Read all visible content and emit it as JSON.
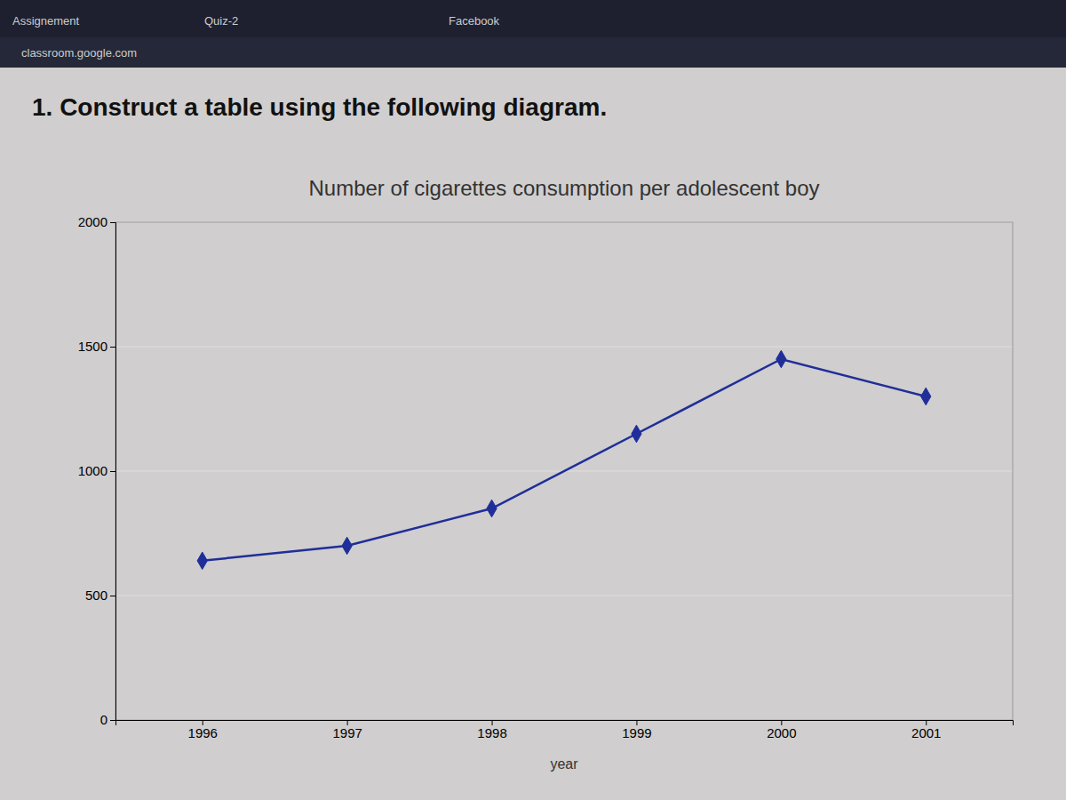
{
  "chart_data": {
    "type": "line",
    "title": "Number of cigarettes consumption per adolescent boy",
    "xlabel": "year",
    "annotations": [
      "1.  Construct a table using the following diagram.",
      "Assignement",
      "Quiz-2",
      "Facebook",
      "classroom.google.com"
    ],
    "x": [
      1996,
      1997,
      1998,
      1999,
      2000,
      2001
    ],
    "values": [
      640,
      700,
      850,
      1150,
      1450,
      1300
    ],
    "color": "#1f2e99",
    "marker": "diamond",
    "xlim": [
      1995.4,
      2001.6
    ],
    "xticks": [
      1996,
      1997,
      1998,
      1999,
      2000,
      2001
    ],
    "ylim": [
      0,
      2000
    ],
    "yticks": [
      0,
      500,
      1000,
      1500,
      2000
    ],
    "grid": true
  }
}
